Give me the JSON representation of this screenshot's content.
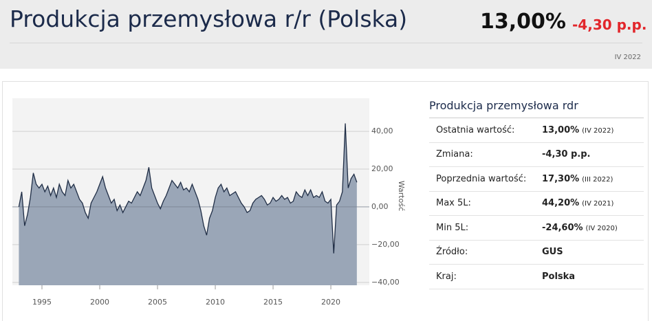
{
  "header": {
    "title": "Produkcja przemysłowa r/r (Polska)",
    "value": "13,00%",
    "change": "-4,30 p.p.",
    "period": "IV 2022"
  },
  "chart_data": {
    "type": "area",
    "y_axis_label": "Wartość",
    "color": "#9aa6b7",
    "line_color": "#1f2d45",
    "grid": true,
    "x": [
      1993.0,
      1993.25,
      1993.5,
      1993.75,
      1994.0,
      1994.25,
      1994.5,
      1994.75,
      1995.0,
      1995.25,
      1995.5,
      1995.75,
      1996.0,
      1996.25,
      1996.5,
      1996.75,
      1997.0,
      1997.25,
      1997.5,
      1997.75,
      1998.0,
      1998.25,
      1998.5,
      1998.75,
      1999.0,
      1999.25,
      1999.5,
      1999.75,
      2000.0,
      2000.25,
      2000.5,
      2000.75,
      2001.0,
      2001.25,
      2001.5,
      2001.75,
      2002.0,
      2002.25,
      2002.5,
      2002.75,
      2003.0,
      2003.25,
      2003.5,
      2003.75,
      2004.0,
      2004.25,
      2004.5,
      2004.75,
      2005.0,
      2005.25,
      2005.5,
      2005.75,
      2006.0,
      2006.25,
      2006.5,
      2006.75,
      2007.0,
      2007.25,
      2007.5,
      2007.75,
      2008.0,
      2008.25,
      2008.5,
      2008.75,
      2009.0,
      2009.25,
      2009.5,
      2009.75,
      2010.0,
      2010.25,
      2010.5,
      2010.75,
      2011.0,
      2011.25,
      2011.5,
      2011.75,
      2012.0,
      2012.25,
      2012.5,
      2012.75,
      2013.0,
      2013.25,
      2013.5,
      2013.75,
      2014.0,
      2014.25,
      2014.5,
      2014.75,
      2015.0,
      2015.25,
      2015.5,
      2015.75,
      2016.0,
      2016.25,
      2016.5,
      2016.75,
      2017.0,
      2017.25,
      2017.5,
      2017.75,
      2018.0,
      2018.25,
      2018.5,
      2018.75,
      2019.0,
      2019.25,
      2019.5,
      2019.75,
      2020.0,
      2020.25,
      2020.5,
      2020.75,
      2021.0,
      2021.25,
      2021.5,
      2021.75,
      2022.0,
      2022.25
    ],
    "values": [
      0,
      8,
      -10,
      -4,
      5,
      18,
      12,
      10,
      12,
      8,
      11,
      6,
      10,
      5,
      12,
      8,
      6,
      14,
      10,
      12,
      8,
      4,
      2,
      -3,
      -6,
      2,
      5,
      8,
      12,
      16,
      10,
      6,
      2,
      4,
      -2,
      1,
      -3,
      0,
      3,
      2,
      5,
      8,
      6,
      10,
      14,
      21,
      10,
      6,
      2,
      -1,
      3,
      6,
      10,
      14,
      12,
      10,
      13,
      9,
      10,
      8,
      12,
      8,
      4,
      -2,
      -10,
      -15,
      -6,
      -2,
      5,
      10,
      12,
      8,
      10,
      6,
      7,
      8,
      5,
      2,
      0,
      -3,
      -2,
      2,
      4,
      5,
      6,
      4,
      1,
      2,
      5,
      3,
      4,
      6,
      4,
      5,
      2,
      3,
      8,
      6,
      5,
      9,
      6,
      9,
      5,
      6,
      5,
      8,
      3,
      2,
      4,
      -24.6,
      1,
      3,
      8,
      44.2,
      10,
      15,
      17.3,
      13
    ],
    "xlim": [
      1992.44,
      2023.33
    ],
    "xticks": [
      1995,
      2000,
      2005,
      2010,
      2015,
      2020
    ],
    "ylim": [
      -41.5,
      57.5
    ],
    "yticks": [
      {
        "value": 40,
        "label": "40,00"
      },
      {
        "value": 20,
        "label": "20,00"
      },
      {
        "value": 0,
        "label": "0,00"
      },
      {
        "value": -20,
        "label": "−20,00"
      },
      {
        "value": -40,
        "label": "−40,00"
      }
    ]
  },
  "table": {
    "title": "Produkcja przemysłowa rdr",
    "rows": [
      {
        "label": "Ostatnia wartość:",
        "value": "13,00%",
        "note": "(IV 2022)"
      },
      {
        "label": "Zmiana:",
        "value": "-4,30 p.p."
      },
      {
        "label": "Poprzednia wartość:",
        "value": "17,30%",
        "note": "(III 2022)"
      },
      {
        "label": "Max 5L:",
        "value": "44,20%",
        "note": "(IV 2021)"
      },
      {
        "label": "Min 5L:",
        "value": "-24,60%",
        "note": "(IV 2020)"
      },
      {
        "label": "Źródło:",
        "value": "GUS"
      },
      {
        "label": "Kraj:",
        "value": "Polska"
      }
    ]
  }
}
